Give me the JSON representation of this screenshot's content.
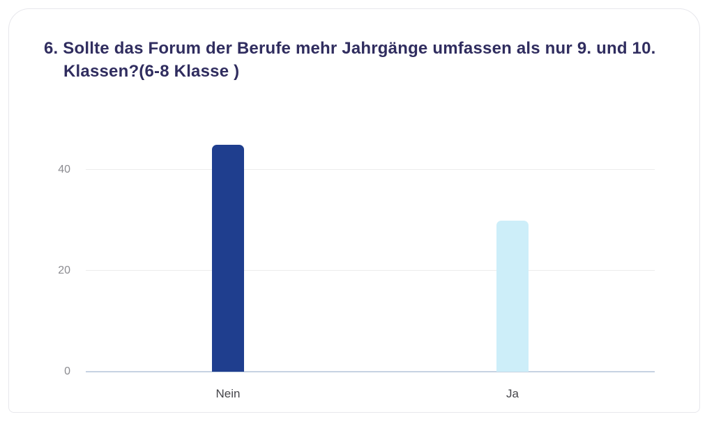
{
  "question": {
    "number": "6.",
    "title_line1": "6. Sollte das Forum der Berufe mehr Jahrgänge umfassen als nur 9. und 10.",
    "title_line2": "Klassen?(6-8 Klasse )"
  },
  "chart_data": {
    "type": "bar",
    "title": "6. Sollte das Forum der Berufe mehr Jahrgänge umfassen als nur 9. und 10. Klassen?(6-8 Klasse )",
    "categories": [
      "Nein",
      "Ja"
    ],
    "values": [
      45,
      30
    ],
    "bar_colors": [
      "#1f3e8e",
      "#cdeef9"
    ],
    "yticks": [
      0,
      20,
      40
    ],
    "ylim": [
      0,
      50
    ],
    "xlabel": "",
    "ylabel": "",
    "grid": true,
    "legend": false
  },
  "theme": {
    "title_color": "#302d5f",
    "tick_label_color": "#8b8b90",
    "category_label_color": "#45454a",
    "gridline_color": "#ececec",
    "baseline_color": "#c6d2e2",
    "card_border_color": "#e7e7ec",
    "background_color": "#ffffff"
  }
}
